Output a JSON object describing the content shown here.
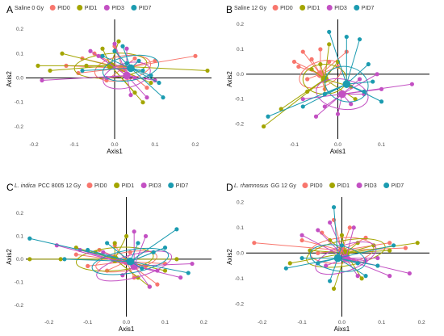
{
  "colors": {
    "PID0": "#F8766D",
    "PID1": "#A3A500",
    "PID3": "#C350C3",
    "PID7": "#1B9BB0"
  },
  "chart_data": [
    {
      "type": "scatter",
      "panel": "A",
      "legend_title": "Saline 0 Gy",
      "legend_title_italic": "",
      "legend": [
        "PID0",
        "PID1",
        "PID3",
        "PID7"
      ],
      "xlabel": "Axis1",
      "ylabel": "Axis2",
      "xlim": [
        -0.22,
        0.24
      ],
      "ylim": [
        -0.25,
        0.24
      ],
      "xticks": [
        -0.2,
        -0.1,
        0.0,
        0.1,
        0.2
      ],
      "yticks": [
        -0.2,
        -0.1,
        0.0,
        0.1,
        0.2
      ],
      "series": [
        {
          "name": "PID0",
          "centroid": [
            0.02,
            0.04
          ],
          "ellipse": [
            0.07,
            0.05,
            -10
          ],
          "points": [
            [
              -0.12,
              0.05
            ],
            [
              -0.08,
              0.08
            ],
            [
              -0.05,
              0.1
            ],
            [
              0.0,
              0.13
            ],
            [
              0.05,
              0.08
            ],
            [
              0.1,
              0.07
            ],
            [
              0.2,
              0.09
            ],
            [
              0.08,
              -0.04
            ],
            [
              -0.02,
              -0.01
            ],
            [
              -0.09,
              0.02
            ]
          ]
        },
        {
          "name": "PID1",
          "centroid": [
            -0.01,
            0.05
          ],
          "ellipse": [
            0.09,
            0.05,
            -5
          ],
          "points": [
            [
              -0.19,
              0.05
            ],
            [
              -0.16,
              0.03
            ],
            [
              -0.13,
              0.1
            ],
            [
              -0.07,
              0.05
            ],
            [
              -0.03,
              0.12
            ],
            [
              0.01,
              0.15
            ],
            [
              0.05,
              -0.06
            ],
            [
              0.07,
              -0.1
            ],
            [
              0.09,
              -0.02
            ],
            [
              0.23,
              0.03
            ]
          ]
        },
        {
          "name": "PID3",
          "centroid": [
            0.03,
            0.01
          ],
          "ellipse": [
            0.06,
            0.05,
            -15
          ],
          "points": [
            [
              -0.18,
              -0.01
            ],
            [
              -0.06,
              0.11
            ],
            [
              -0.02,
              0.0
            ],
            [
              0.0,
              0.14
            ],
            [
              0.03,
              0.12
            ],
            [
              0.04,
              -0.07
            ],
            [
              0.05,
              0.0
            ],
            [
              0.08,
              -0.08
            ],
            [
              0.1,
              -0.01
            ],
            [
              -0.04,
              0.09
            ]
          ]
        },
        {
          "name": "PID7",
          "centroid": [
            0.04,
            0.04
          ],
          "ellipse": [
            0.07,
            0.05,
            -10
          ],
          "points": [
            [
              -0.03,
              0.09
            ],
            [
              0.0,
              0.11
            ],
            [
              0.03,
              0.06
            ],
            [
              0.06,
              0.07
            ],
            [
              0.09,
              0.01
            ],
            [
              0.11,
              -0.02
            ],
            [
              0.12,
              -0.08
            ],
            [
              0.07,
              0.03
            ],
            [
              -0.08,
              0.03
            ],
            [
              0.02,
              0.13
            ]
          ]
        }
      ]
    },
    {
      "type": "scatter",
      "panel": "B",
      "legend_title": "Saline 12 Gy",
      "legend_title_italic": "",
      "legend": [
        "PID0",
        "PID1",
        "PID3",
        "PID7"
      ],
      "xlabel": "Axis1",
      "ylabel": "Axis2",
      "xlim": [
        -0.21,
        0.21
      ],
      "ylim": [
        -0.26,
        0.22
      ],
      "xticks": [
        -0.1,
        0.0,
        0.1
      ],
      "yticks": [
        -0.2,
        -0.1,
        0.0,
        0.1,
        0.2
      ],
      "series": [
        {
          "name": "PID0",
          "centroid": [
            -0.04,
            0.0
          ],
          "ellipse": [
            0.05,
            0.05,
            -20
          ],
          "points": [
            [
              -0.1,
              0.05
            ],
            [
              -0.09,
              0.03
            ],
            [
              -0.07,
              -0.02
            ],
            [
              -0.06,
              0.06
            ],
            [
              -0.04,
              0.1
            ],
            [
              -0.02,
              0.05
            ],
            [
              0.0,
              0.03
            ],
            [
              -0.03,
              -0.06
            ],
            [
              -0.08,
              0.09
            ],
            [
              0.02,
              0.09
            ]
          ]
        },
        {
          "name": "PID1",
          "centroid": [
            -0.03,
            -0.02
          ],
          "ellipse": [
            0.05,
            0.06,
            0
          ],
          "points": [
            [
              -0.17,
              -0.21
            ],
            [
              -0.13,
              -0.14
            ],
            [
              -0.06,
              0.02
            ],
            [
              -0.04,
              0.04
            ],
            [
              -0.03,
              -0.08
            ],
            [
              -0.02,
              0.12
            ],
            [
              0.0,
              0.05
            ],
            [
              0.03,
              -0.05
            ],
            [
              0.04,
              -0.1
            ],
            [
              -0.07,
              -0.07
            ]
          ]
        },
        {
          "name": "PID3",
          "centroid": [
            0.01,
            -0.08
          ],
          "ellipse": [
            0.06,
            0.06,
            10
          ],
          "points": [
            [
              -0.08,
              -0.1
            ],
            [
              -0.03,
              -0.13
            ],
            [
              0.0,
              -0.16
            ],
            [
              0.03,
              -0.12
            ],
            [
              0.06,
              -0.08
            ],
            [
              0.09,
              0.0
            ],
            [
              0.1,
              -0.06
            ],
            [
              0.17,
              -0.04
            ],
            [
              0.05,
              -0.02
            ],
            [
              -0.05,
              -0.17
            ]
          ]
        },
        {
          "name": "PID7",
          "centroid": [
            0.02,
            -0.04
          ],
          "ellipse": [
            0.05,
            0.07,
            15
          ],
          "points": [
            [
              -0.16,
              -0.17
            ],
            [
              -0.08,
              -0.13
            ],
            [
              -0.02,
              0.17
            ],
            [
              0.02,
              0.15
            ],
            [
              0.05,
              0.14
            ],
            [
              0.07,
              0.04
            ],
            [
              0.08,
              -0.03
            ],
            [
              0.1,
              -0.11
            ],
            [
              0.06,
              -0.07
            ],
            [
              -0.03,
              -0.08
            ]
          ]
        }
      ]
    },
    {
      "type": "scatter",
      "panel": "C",
      "legend_title": "PCC 8005 12 Gy",
      "legend_title_italic": "L. indica",
      "legend": [
        "PID0",
        "PID1",
        "PID3",
        "PID7"
      ],
      "xlabel": "Axis1",
      "ylabel": "Axis2",
      "xlim": [
        -0.26,
        0.22
      ],
      "ylim": [
        -0.25,
        0.27
      ],
      "xticks": [
        -0.2,
        -0.1,
        0.0,
        0.1,
        0.2
      ],
      "yticks": [
        -0.2,
        -0.1,
        0.0,
        0.1,
        0.2
      ],
      "series": [
        {
          "name": "PID0",
          "centroid": [
            0.0,
            -0.01
          ],
          "ellipse": [
            0.08,
            0.04,
            -10
          ],
          "points": [
            [
              -0.13,
              0.02
            ],
            [
              -0.1,
              -0.03
            ],
            [
              -0.07,
              0.04
            ],
            [
              -0.03,
              0.06
            ],
            [
              0.02,
              -0.08
            ],
            [
              0.05,
              -0.03
            ],
            [
              0.08,
              -0.11
            ],
            [
              0.1,
              -0.02
            ],
            [
              -0.05,
              -0.05
            ],
            [
              0.01,
              0.03
            ]
          ]
        },
        {
          "name": "PID1",
          "centroid": [
            -0.03,
            0.0
          ],
          "ellipse": [
            0.1,
            0.05,
            -5
          ],
          "points": [
            [
              -0.25,
              0.0
            ],
            [
              -0.17,
              0.0
            ],
            [
              -0.13,
              0.05
            ],
            [
              -0.08,
              0.03
            ],
            [
              -0.03,
              0.07
            ],
            [
              0.0,
              0.1
            ],
            [
              0.03,
              -0.08
            ],
            [
              0.06,
              -0.12
            ],
            [
              0.1,
              -0.05
            ],
            [
              0.13,
              0.0
            ]
          ]
        },
        {
          "name": "PID3",
          "centroid": [
            0.02,
            -0.03
          ],
          "ellipse": [
            0.1,
            0.05,
            -15
          ],
          "points": [
            [
              -0.18,
              0.06
            ],
            [
              -0.12,
              0.04
            ],
            [
              -0.06,
              0.03
            ],
            [
              0.02,
              0.12
            ],
            [
              0.05,
              0.1
            ],
            [
              0.08,
              -0.05
            ],
            [
              0.14,
              -0.08
            ],
            [
              0.17,
              -0.02
            ],
            [
              0.06,
              -0.12
            ],
            [
              -0.01,
              -0.07
            ]
          ]
        },
        {
          "name": "PID7",
          "centroid": [
            0.01,
            -0.01
          ],
          "ellipse": [
            0.1,
            0.05,
            -10
          ],
          "points": [
            [
              -0.25,
              0.09
            ],
            [
              -0.16,
              0.0
            ],
            [
              -0.1,
              0.04
            ],
            [
              -0.05,
              0.07
            ],
            [
              0.03,
              0.07
            ],
            [
              0.07,
              0.03
            ],
            [
              0.13,
              0.13
            ],
            [
              0.16,
              -0.06
            ],
            [
              0.1,
              0.05
            ],
            [
              0.04,
              -0.04
            ]
          ]
        }
      ]
    },
    {
      "type": "scatter",
      "panel": "D",
      "legend_title": "GG 12 Gy",
      "legend_title_italic": "L. rhamnosus",
      "legend": [
        "PID0",
        "PID1",
        "PID3",
        "PID7"
      ],
      "xlabel": "Aixs1",
      "ylabel": "Axis2",
      "xlim": [
        -0.24,
        0.22
      ],
      "ylim": [
        -0.25,
        0.22
      ],
      "xticks": [
        -0.2,
        -0.1,
        0.0,
        0.1,
        0.2
      ],
      "yticks": [
        -0.2,
        -0.1,
        0.0,
        0.1,
        0.2
      ],
      "series": [
        {
          "name": "PID0",
          "centroid": [
            0.0,
            0.01
          ],
          "ellipse": [
            0.08,
            0.05,
            -5
          ],
          "points": [
            [
              -0.22,
              0.04
            ],
            [
              -0.1,
              0.05
            ],
            [
              -0.05,
              0.08
            ],
            [
              -0.02,
              0.13
            ],
            [
              0.02,
              0.1
            ],
            [
              0.06,
              0.06
            ],
            [
              0.12,
              0.04
            ],
            [
              0.16,
              0.02
            ],
            [
              0.03,
              -0.03
            ],
            [
              -0.06,
              0.0
            ]
          ]
        },
        {
          "name": "PID1",
          "centroid": [
            0.01,
            0.0
          ],
          "ellipse": [
            0.1,
            0.05,
            -10
          ],
          "points": [
            [
              -0.13,
              -0.04
            ],
            [
              -0.08,
              0.01
            ],
            [
              -0.03,
              0.05
            ],
            [
              0.0,
              0.07
            ],
            [
              0.04,
              0.04
            ],
            [
              0.08,
              0.03
            ],
            [
              0.12,
              0.01
            ],
            [
              0.19,
              0.04
            ],
            [
              0.05,
              -0.1
            ],
            [
              -0.02,
              -0.14
            ]
          ]
        },
        {
          "name": "PID3",
          "centroid": [
            0.01,
            -0.02
          ],
          "ellipse": [
            0.08,
            0.05,
            -20
          ],
          "points": [
            [
              -0.1,
              0.07
            ],
            [
              -0.06,
              0.09
            ],
            [
              -0.03,
              0.12
            ],
            [
              0.03,
              0.1
            ],
            [
              0.06,
              -0.03
            ],
            [
              0.09,
              -0.02
            ],
            [
              0.12,
              -0.09
            ],
            [
              0.17,
              -0.08
            ],
            [
              0.04,
              -0.09
            ],
            [
              -0.04,
              -0.05
            ]
          ]
        },
        {
          "name": "PID7",
          "centroid": [
            -0.01,
            -0.02
          ],
          "ellipse": [
            0.07,
            0.05,
            10
          ],
          "points": [
            [
              -0.14,
              -0.06
            ],
            [
              -0.1,
              -0.02
            ],
            [
              -0.06,
              -0.04
            ],
            [
              -0.02,
              0.18
            ],
            [
              0.0,
              0.03
            ],
            [
              0.04,
              -0.04
            ],
            [
              0.06,
              -0.09
            ],
            [
              0.09,
              -0.05
            ],
            [
              0.13,
              0.03
            ],
            [
              -0.03,
              -0.11
            ]
          ]
        }
      ]
    }
  ]
}
